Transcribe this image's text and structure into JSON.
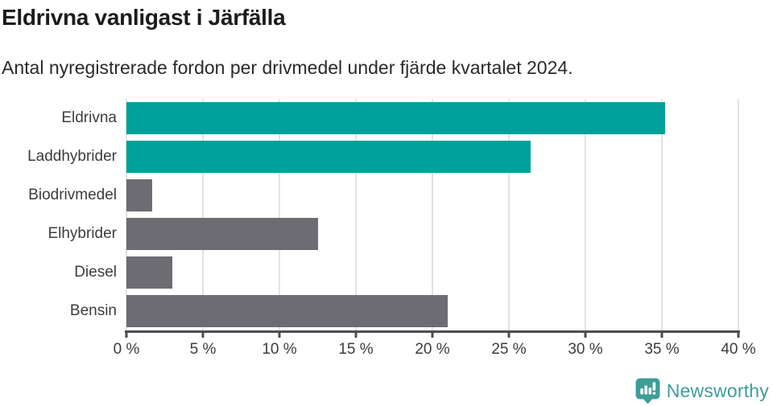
{
  "header": {
    "title": "Eldrivna vanligast i Järfälla",
    "subtitle": "Antal nyregistrerade fordon per drivmedel under fjärde kvartalet 2024."
  },
  "chart_data": {
    "type": "bar",
    "orientation": "horizontal",
    "title": "Eldrivna vanligast i Järfälla",
    "subtitle": "Antal nyregistrerade fordon per drivmedel under fjärde kvartalet 2024.",
    "categories": [
      "Eldrivna",
      "Laddhybrider",
      "Biodrivmedel",
      "Elhybrider",
      "Diesel",
      "Bensin"
    ],
    "values": [
      35.2,
      26.4,
      1.7,
      12.5,
      3.0,
      21.0
    ],
    "unit": "%",
    "xlim": [
      0,
      40
    ],
    "tick_values": [
      0,
      5,
      10,
      15,
      20,
      25,
      30,
      35,
      40
    ],
    "tick_labels": [
      "0 %",
      "5 %",
      "10 %",
      "15 %",
      "20 %",
      "25 %",
      "30 %",
      "35 %",
      "40 %"
    ],
    "bar_colors": [
      "#00a09a",
      "#00a09a",
      "#6c6c72",
      "#6c6c72",
      "#6c6c72",
      "#6c6c72"
    ],
    "highlight_color": "#00a09a",
    "default_color": "#6c6c72",
    "grid": true,
    "legend": false
  },
  "footer": {
    "logo_text": "Newsworthy",
    "logo_color": "#3e9d99"
  }
}
